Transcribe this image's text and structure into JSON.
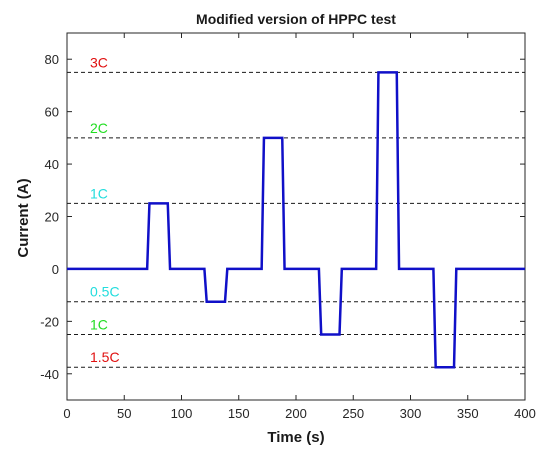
{
  "chart_data": {
    "type": "line",
    "title": "Modified version of HPPC test",
    "xlabel": "Time (s)",
    "ylabel": "Current (A)",
    "xlim": [
      0,
      400
    ],
    "ylim": [
      -50,
      90
    ],
    "xticks": [
      0,
      50,
      100,
      150,
      200,
      250,
      300,
      350,
      400
    ],
    "yticks": [
      -40,
      -20,
      0,
      20,
      40,
      60,
      80
    ],
    "grid": false,
    "series": [
      {
        "color": "#1010c8",
        "x": [
          0,
          70,
          72,
          88,
          90,
          120,
          122,
          138,
          140,
          170,
          172,
          188,
          190,
          220,
          222,
          238,
          240,
          270,
          272,
          288,
          290,
          320,
          322,
          338,
          340,
          400
        ],
        "y": [
          0,
          0,
          25,
          25,
          0,
          0,
          -12.5,
          -12.5,
          0,
          0,
          50,
          50,
          0,
          0,
          -25,
          -25,
          0,
          0,
          75,
          75,
          0,
          0,
          -37.5,
          -37.5,
          0,
          0
        ]
      }
    ],
    "reference_lines": [
      {
        "y": 75,
        "label": "3C",
        "label_color": "#e01010",
        "label_position": "above"
      },
      {
        "y": 50,
        "label": "2C",
        "label_color": "#22dd22",
        "label_position": "above"
      },
      {
        "y": 25,
        "label": "1C",
        "label_color": "#22dddd",
        "label_position": "above"
      },
      {
        "y": -12.5,
        "label": "0.5C",
        "label_color": "#22dddd",
        "label_position": "above"
      },
      {
        "y": -25,
        "label": "1C",
        "label_color": "#22dd22",
        "label_position": "above"
      },
      {
        "y": -37.5,
        "label": "1.5C",
        "label_color": "#e01010",
        "label_position": "above"
      }
    ]
  }
}
